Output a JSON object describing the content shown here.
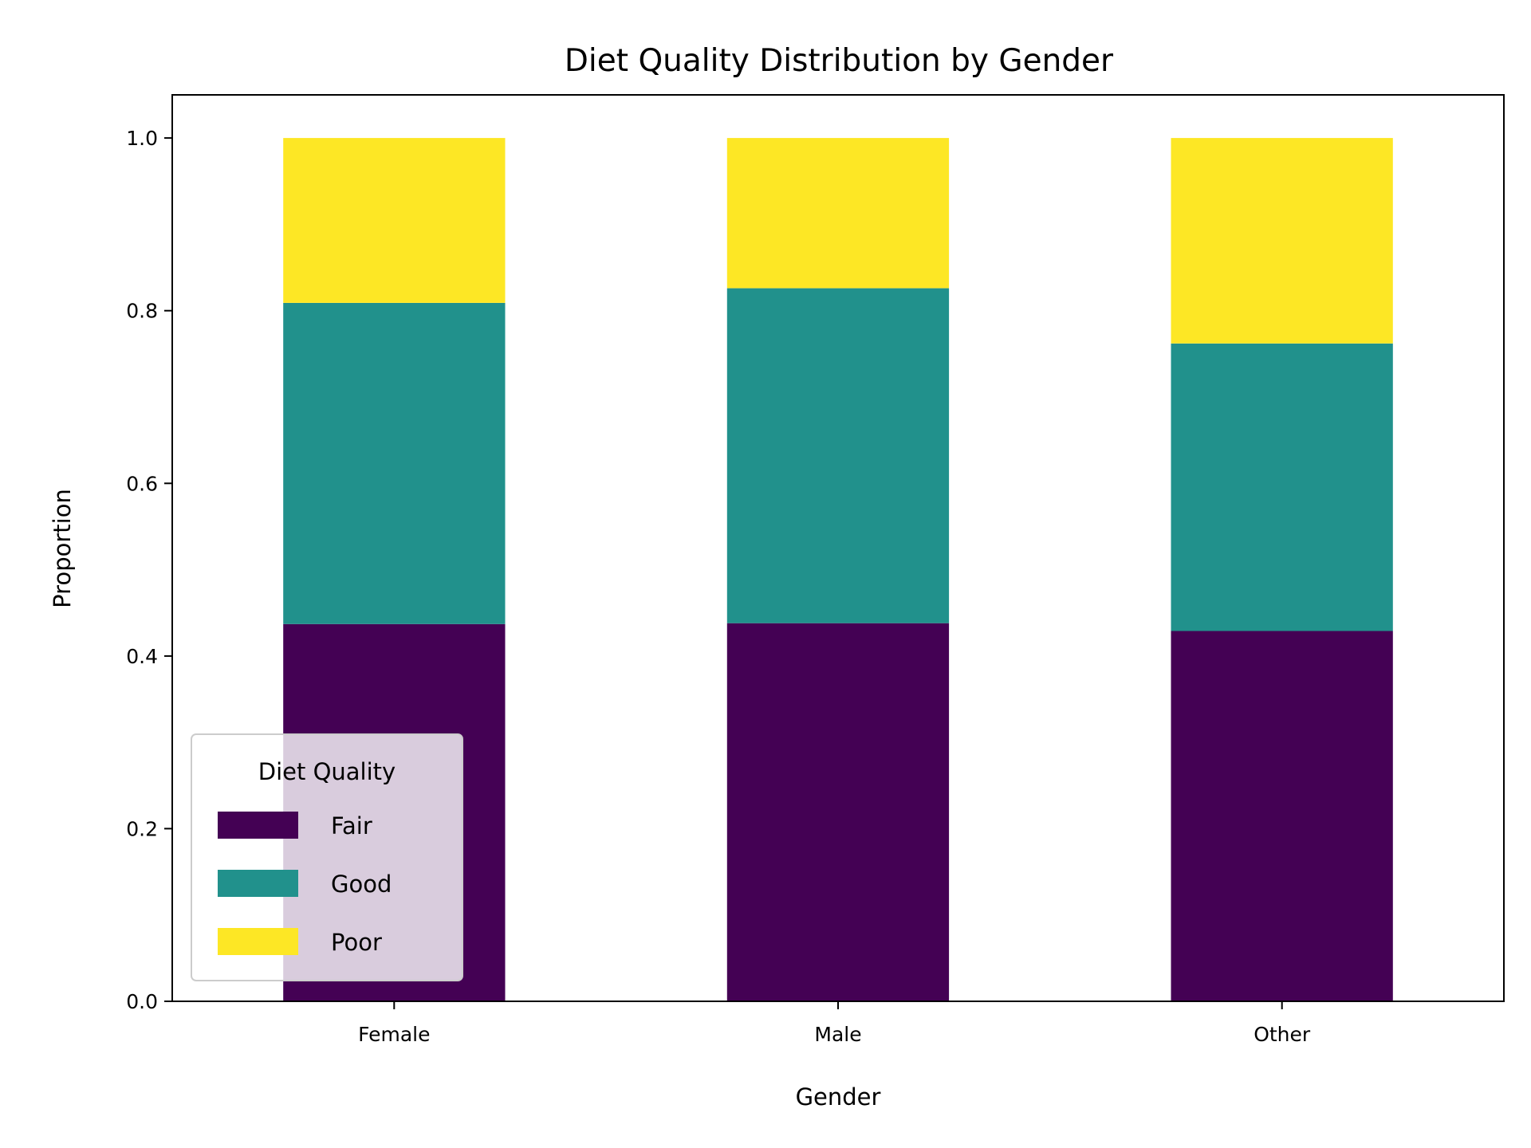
{
  "chart_data": {
    "type": "bar",
    "stacked": true,
    "title": "Diet Quality Distribution by Gender",
    "xlabel": "Gender",
    "ylabel": "Proportion",
    "categories": [
      "Female",
      "Male",
      "Other"
    ],
    "series": [
      {
        "name": "Fair",
        "values": [
          0.437,
          0.438,
          0.429
        ],
        "color": "#440154"
      },
      {
        "name": "Good",
        "values": [
          0.372,
          0.388,
          0.333
        ],
        "color": "#21918c"
      },
      {
        "name": "Poor",
        "values": [
          0.191,
          0.174,
          0.238
        ],
        "color": "#fde725"
      }
    ],
    "ylim": [
      0,
      1.05
    ],
    "yticks": [
      0.0,
      0.2,
      0.4,
      0.6,
      0.8,
      1.0
    ],
    "ytick_labels": [
      "0.0",
      "0.2",
      "0.4",
      "0.6",
      "0.8",
      "1.0"
    ],
    "grid": false,
    "legend": {
      "title": "Diet Quality",
      "placement": "lower-left",
      "entries": [
        "Fair",
        "Good",
        "Poor"
      ]
    }
  }
}
